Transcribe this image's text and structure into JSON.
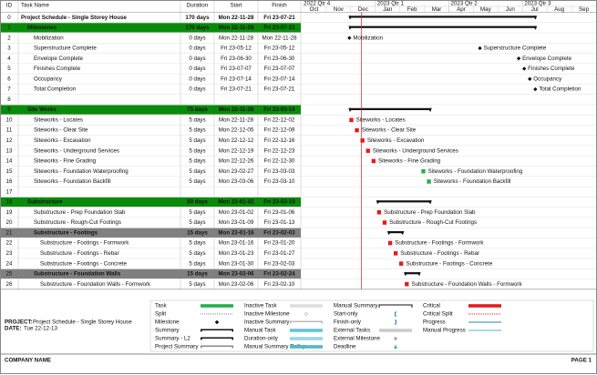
{
  "table": {
    "headers": {
      "id": "ID",
      "name": "Task Name",
      "duration": "Duration",
      "start": "Start",
      "finish": "Finish"
    },
    "rows": [
      {
        "id": 0,
        "name": "Project Schedule - Single Storey House",
        "duration": "170 days",
        "start": "Mon 22-11-28",
        "finish": "Fri 23-07-21",
        "style": "project",
        "level": 0
      },
      {
        "id": 1,
        "name": "Milestones",
        "duration": "170 days",
        "start": "Mon 22-11-28",
        "finish": "Fri 23-07-21",
        "style": "group",
        "level": 1
      },
      {
        "id": 2,
        "name": "Mobilization",
        "duration": "0 days",
        "start": "Mon 22-11-28",
        "finish": "Mon 22-11-28",
        "style": "milestone",
        "level": 2
      },
      {
        "id": 3,
        "name": "Superstructure Complete",
        "duration": "0 days",
        "start": "Fri 23-05-12",
        "finish": "Fri 23-05-12",
        "style": "milestone",
        "level": 2
      },
      {
        "id": 4,
        "name": "Envelope Complete",
        "duration": "0 days",
        "start": "Fri 23-06-30",
        "finish": "Fri 23-06-30",
        "style": "milestone",
        "level": 2
      },
      {
        "id": 5,
        "name": "Finishes Complete",
        "duration": "0 days",
        "start": "Fri 23-07-07",
        "finish": "Fri 23-07-07",
        "style": "milestone",
        "level": 2
      },
      {
        "id": 6,
        "name": "Occupancy",
        "duration": "0 days",
        "start": "Fri 23-07-14",
        "finish": "Fri 23-07-14",
        "style": "milestone",
        "level": 2
      },
      {
        "id": 7,
        "name": "Total Completion",
        "duration": "0 days",
        "start": "Fri 23-07-21",
        "finish": "Fri 23-07-21",
        "style": "milestone",
        "level": 2
      },
      {
        "id": 8
      },
      {
        "id": 9,
        "name": "Site Works",
        "duration": "75 days",
        "start": "Mon 22-11-28",
        "finish": "Fri 23-03-10",
        "style": "group",
        "level": 1
      },
      {
        "id": 10,
        "name": "Siteworks - Locates",
        "duration": "5 days",
        "start": "Mon 22-11-28",
        "finish": "Fri 22-12-02",
        "style": "task",
        "level": 2,
        "color": "#e41b1b"
      },
      {
        "id": 11,
        "name": "Siteworks - Clear Site",
        "duration": "5 days",
        "start": "Mon 22-12-05",
        "finish": "Fri 22-12-09",
        "style": "task",
        "level": 2,
        "color": "#e41b1b"
      },
      {
        "id": 12,
        "name": "Siteworks - Excavation",
        "duration": "5 days",
        "start": "Mon 22-12-12",
        "finish": "Fri 22-12-16",
        "style": "task",
        "level": 2,
        "color": "#e41b1b"
      },
      {
        "id": 13,
        "name": "Siteworks - Underground Services",
        "duration": "5 days",
        "start": "Mon 22-12-19",
        "finish": "Fri 22-12-23",
        "style": "task",
        "level": 2,
        "color": "#e41b1b"
      },
      {
        "id": 14,
        "name": "Siteworks - Fine Grading",
        "duration": "5 days",
        "start": "Mon 22-12-26",
        "finish": "Fri 22-12-30",
        "style": "task",
        "level": 2,
        "color": "#e41b1b"
      },
      {
        "id": 15,
        "name": "Siteworks - Foundation Waterproofing",
        "duration": "5 days",
        "start": "Mon 23-02-27",
        "finish": "Fri 23-03-03",
        "style": "task",
        "level": 2,
        "color": "#22b04a"
      },
      {
        "id": 16,
        "name": "Siteworks - Foundation Backfill",
        "duration": "5 days",
        "start": "Mon 23-03-06",
        "finish": "Fri 23-03-10",
        "style": "task",
        "level": 2,
        "color": "#22b04a"
      },
      {
        "id": 17
      },
      {
        "id": 18,
        "name": "Substructure",
        "duration": "50 days",
        "start": "Mon 23-01-02",
        "finish": "Fri 23-03-10",
        "style": "group",
        "level": 1
      },
      {
        "id": 19,
        "name": "Substructure - Prep Foundation Slab",
        "duration": "5 days",
        "start": "Mon 23-01-02",
        "finish": "Fri 23-01-06",
        "style": "task",
        "level": 2,
        "color": "#e41b1b"
      },
      {
        "id": 20,
        "name": "Substructure - Rough-Cut Footings",
        "duration": "5 days",
        "start": "Mon 23-01-09",
        "finish": "Fri 23-01-13",
        "style": "task",
        "level": 2,
        "color": "#e41b1b"
      },
      {
        "id": 21,
        "name": "Substructure - Footings",
        "duration": "15 days",
        "start": "Mon 23-01-16",
        "finish": "Fri 23-02-03",
        "style": "subgroup",
        "level": 2
      },
      {
        "id": 22,
        "name": "Substructure - Footings - Formwork",
        "duration": "5 days",
        "start": "Mon 23-01-16",
        "finish": "Fri 23-01-20",
        "style": "task",
        "level": 3,
        "color": "#e41b1b"
      },
      {
        "id": 23,
        "name": "Substructure - Footings - Rebar",
        "duration": "5 days",
        "start": "Mon 23-01-23",
        "finish": "Fri 23-01-27",
        "style": "task",
        "level": 3,
        "color": "#e41b1b"
      },
      {
        "id": 24,
        "name": "Substructure - Footings - Concrete",
        "duration": "5 days",
        "start": "Mon 23-01-30",
        "finish": "Fri 23-02-03",
        "style": "task",
        "level": 3,
        "color": "#e41b1b"
      },
      {
        "id": 25,
        "name": "Substructure - Foundation Walls",
        "duration": "15 days",
        "start": "Mon 23-02-06",
        "finish": "Fri 23-02-24",
        "style": "subgroup",
        "level": 2
      },
      {
        "id": 26,
        "name": "Substructure - Foundation Walls - Formwork",
        "duration": "5 days",
        "start": "Mon 23-02-06",
        "finish": "Fri 23-02-10",
        "style": "task",
        "level": 3,
        "color": "#e41b1b"
      }
    ]
  },
  "timeline": {
    "quarters": [
      "2022 Qtr 4",
      "2023 Qtr 1",
      "2023 Qtr 2",
      "2023 Qtr 3"
    ],
    "months": [
      "Oct",
      "Nov",
      "Dec",
      "Jan",
      "Feb",
      "Mar",
      "Apr",
      "May",
      "Jun",
      "Jul",
      "Aug",
      "Sep"
    ]
  },
  "legend": [
    [
      "Task",
      "Split",
      "Milestone",
      "Summary",
      "Summary - L2",
      "Project Summary"
    ],
    [
      "Inactive Task",
      "Inactive Milestone",
      "Inactive Summary",
      "Manual Task",
      "Duration-only",
      "Manual Summary Rollup"
    ],
    [
      "Manual Summary",
      "Start-only",
      "Finish-only",
      "External Tasks",
      "External Milestone",
      "Deadline"
    ],
    [
      "Critical",
      "Critical Split",
      "Progress",
      "Manual Progress"
    ]
  ],
  "project": {
    "project_label": "PROJECT:",
    "name": "Project Schedule - Single Storey House",
    "date_label": "DATE:",
    "date": "Tue 22-12-13"
  },
  "footer": {
    "company": "COMPANY NAME",
    "page": "PAGE 1"
  }
}
